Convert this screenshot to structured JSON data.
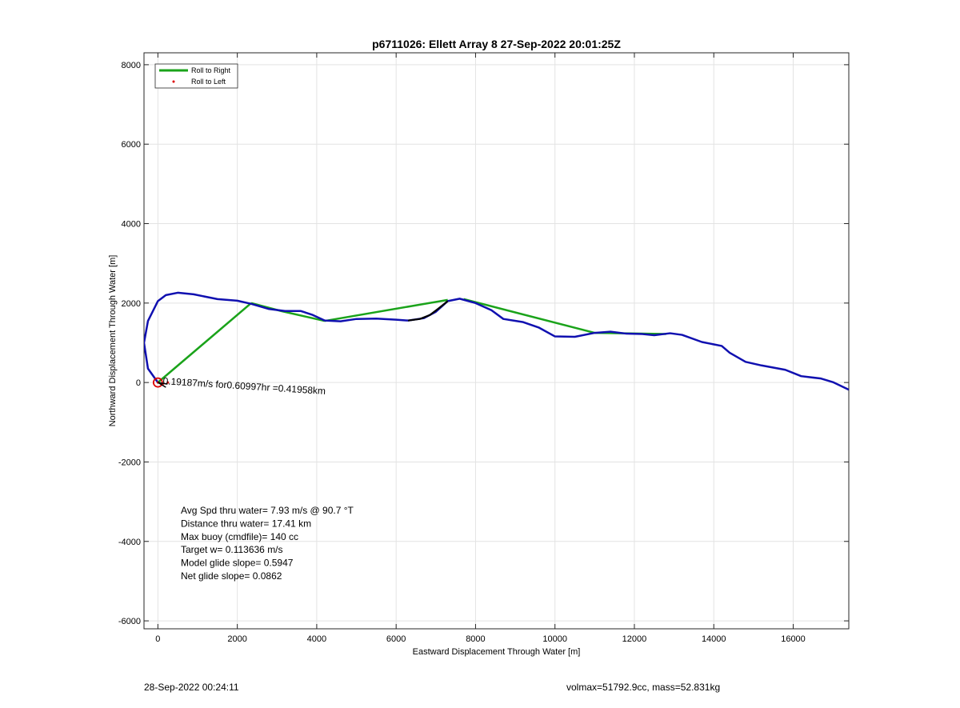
{
  "chart_data": {
    "type": "line",
    "title": "p6711026: Ellett Array 8 27-Sep-2022 20:01:25Z",
    "xlabel": "Eastward Displacement Through Water [m]",
    "ylabel": "Northward Displacement Through Water [m]",
    "xlim": [
      -350,
      17400
    ],
    "ylim": [
      -6200,
      8300
    ],
    "xticks": [
      0,
      2000,
      4000,
      6000,
      8000,
      10000,
      12000,
      14000,
      16000
    ],
    "yticks": [
      -6000,
      -4000,
      -2000,
      0,
      2000,
      4000,
      6000,
      8000
    ],
    "grid": true,
    "legend_position": "top-left",
    "legend": [
      "Roll to Right",
      "Roll to Left"
    ],
    "series": [
      {
        "name": "Roll to Right",
        "color": "#1aa31a",
        "segments": [
          [
            [
              0,
              0
            ],
            [
              2350,
              2000
            ]
          ],
          [
            [
              2350,
              2000
            ],
            [
              3100,
              1800
            ]
          ],
          [
            [
              3100,
              1800
            ],
            [
              4200,
              1550
            ]
          ],
          [
            [
              4200,
              1550
            ],
            [
              7300,
              2080
            ]
          ],
          [
            [
              7700,
              2100
            ],
            [
              11000,
              1250
            ]
          ],
          [
            [
              11000,
              1250
            ],
            [
              12800,
              1220
            ]
          ]
        ]
      },
      {
        "name": "Roll to Left",
        "color": "#dd0000",
        "values": [
          [
            0,
            0
          ],
          [
            120,
            -40
          ],
          [
            250,
            0
          ]
        ]
      },
      {
        "name": "",
        "color": "#1010b0",
        "values": [
          [
            0,
            0
          ],
          [
            -250,
            350
          ],
          [
            -350,
            1000
          ],
          [
            -250,
            1550
          ],
          [
            0,
            2050
          ],
          [
            200,
            2200
          ],
          [
            500,
            2260
          ],
          [
            900,
            2220
          ],
          [
            1500,
            2100
          ],
          [
            2000,
            2060
          ],
          [
            2350,
            1980
          ],
          [
            2800,
            1850
          ],
          [
            3200,
            1800
          ],
          [
            3600,
            1800
          ],
          [
            3900,
            1700
          ],
          [
            4200,
            1560
          ],
          [
            4600,
            1540
          ],
          [
            5000,
            1600
          ],
          [
            5500,
            1610
          ],
          [
            6000,
            1580
          ],
          [
            6300,
            1560
          ],
          [
            6700,
            1620
          ],
          [
            7000,
            1780
          ],
          [
            7300,
            2050
          ],
          [
            7600,
            2110
          ],
          [
            8000,
            2000
          ],
          [
            8400,
            1820
          ],
          [
            8700,
            1600
          ],
          [
            9200,
            1520
          ],
          [
            9600,
            1380
          ],
          [
            10000,
            1160
          ],
          [
            10500,
            1150
          ],
          [
            11000,
            1250
          ],
          [
            11400,
            1280
          ],
          [
            11800,
            1230
          ],
          [
            12200,
            1220
          ],
          [
            12500,
            1190
          ],
          [
            12900,
            1240
          ],
          [
            13200,
            1200
          ],
          [
            13700,
            1020
          ],
          [
            14200,
            920
          ],
          [
            14400,
            750
          ],
          [
            14800,
            520
          ],
          [
            15200,
            430
          ],
          [
            15800,
            320
          ],
          [
            16200,
            160
          ],
          [
            16700,
            100
          ],
          [
            17000,
            10
          ],
          [
            17400,
            -180
          ]
        ]
      },
      {
        "name": "",
        "color": "#000000",
        "values": [
          [
            6300,
            1560
          ],
          [
            6600,
            1600
          ],
          [
            6850,
            1700
          ],
          [
            7050,
            1850
          ],
          [
            7300,
            2050
          ]
        ]
      }
    ],
    "annotations": {
      "current_label": "0.19187m/s for0.60997hr =0.41958km",
      "stats": [
        "Avg Spd thru water=  7.93 m/s @  90.7 °T",
        "Distance thru water= 17.41 km",
        "Max buoy (cmdfile)= 140 cc",
        "Target w= 0.113636 m/s",
        "Model glide slope= 0.5947",
        "Net glide slope= 0.0862"
      ]
    }
  },
  "footer": {
    "date": "28-Sep-2022 00:24:11",
    "info": "volmax=51792.9cc, mass=52.831kg"
  }
}
